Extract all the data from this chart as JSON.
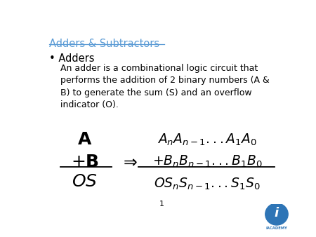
{
  "title": "Adders & Subtractors",
  "title_color": "#5b9bd5",
  "background_color": "#ffffff",
  "bullet_text": "Adders",
  "sub_bullet_text": "An adder is a combinational logic circuit that\nperforms the addition of 2 binary numbers (A &\nB) to generate the sum (S) and an overflow\nindicator (O).",
  "page_number": "1",
  "math_A": "$\\mathbf{A}$",
  "math_plusB": "$+\\mathbf{B}$",
  "math_OS": "$\\mathit{OS}$",
  "math_An": "$A_n A_{n-1}...A_1 A_0$",
  "math_Bn": "$+B_n B_{n-1}...B_1 B_0$",
  "math_OSn": "$OS_n S_{n-1}...S_1 S_0$",
  "arrow": "$\\Rightarrow$"
}
